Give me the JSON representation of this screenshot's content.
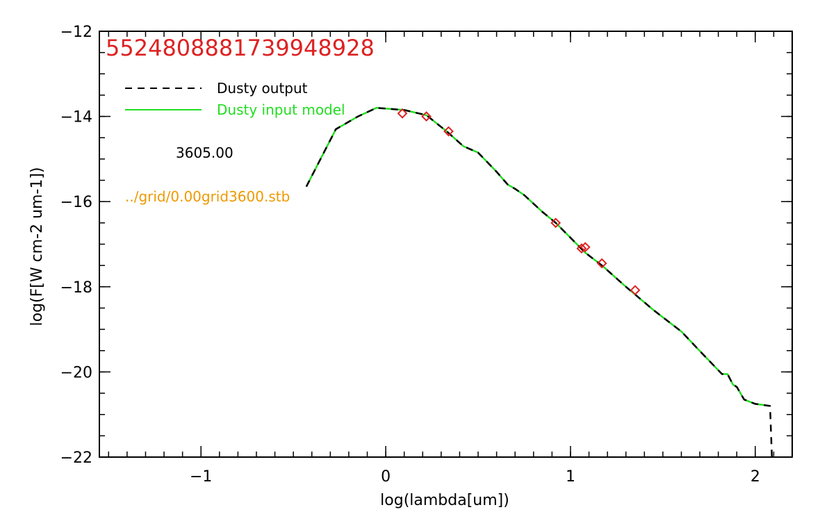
{
  "chart_data": {
    "type": "line",
    "id_label": "5524808881739948928",
    "xlabel": "log(lambda[um])",
    "ylabel": "log(F[W cm-2 um-1])",
    "xlim": [
      -1.55,
      2.2
    ],
    "ylim": [
      -22,
      -12
    ],
    "x_major_ticks": [
      -1,
      0,
      1,
      2
    ],
    "x_tick_labels": [
      "−1",
      "0",
      "1",
      "2"
    ],
    "x_minor_step": 0.1,
    "y_major_ticks": [
      -22,
      -20,
      -18,
      -16,
      -14,
      -12
    ],
    "y_tick_labels": [
      "−22",
      "−20",
      "−18",
      "−16",
      "−14",
      "−12"
    ],
    "y_minor_step": 0.5,
    "grid": false,
    "legend_position": "top-left",
    "legend": [
      {
        "label": "Dusty output",
        "style": "dashed",
        "color": "#000000"
      },
      {
        "label": "Dusty input model",
        "style": "solid",
        "color": "#22dd22"
      }
    ],
    "annotations": {
      "temperature": "3605.00",
      "filename": "../grid/0.00grid3600.stb"
    },
    "series": [
      {
        "name": "Dusty input model",
        "style": "solid",
        "color": "#22dd22",
        "x": [
          -0.43,
          -0.27,
          -0.15,
          -0.05,
          0.1,
          0.22,
          0.33,
          0.42,
          0.5,
          0.6,
          0.66,
          0.7,
          0.75,
          0.85,
          0.92,
          1.0,
          1.08,
          1.17,
          1.3,
          1.45,
          1.6,
          1.72,
          1.82,
          1.85,
          1.88,
          1.9,
          1.94,
          2.0,
          2.08
        ],
        "y": [
          -15.65,
          -14.3,
          -14.0,
          -13.8,
          -13.85,
          -13.97,
          -14.35,
          -14.7,
          -14.85,
          -15.3,
          -15.6,
          -15.7,
          -15.85,
          -16.25,
          -16.5,
          -16.85,
          -17.2,
          -17.5,
          -18.0,
          -18.55,
          -19.05,
          -19.6,
          -20.05,
          -20.05,
          -20.3,
          -20.35,
          -20.65,
          -20.75,
          -20.8
        ]
      },
      {
        "name": "Dusty output",
        "style": "dashed",
        "color": "#000000",
        "x": [
          -0.43,
          -0.27,
          -0.15,
          -0.05,
          0.1,
          0.22,
          0.33,
          0.42,
          0.5,
          0.6,
          0.66,
          0.7,
          0.75,
          0.85,
          0.92,
          1.0,
          1.08,
          1.17,
          1.3,
          1.45,
          1.6,
          1.72,
          1.82,
          1.85,
          1.88,
          1.9,
          1.94,
          2.0,
          2.08,
          2.09
        ],
        "y": [
          -15.65,
          -14.3,
          -14.0,
          -13.8,
          -13.85,
          -13.97,
          -14.35,
          -14.7,
          -14.85,
          -15.3,
          -15.6,
          -15.7,
          -15.85,
          -16.25,
          -16.5,
          -16.85,
          -17.2,
          -17.5,
          -18.0,
          -18.55,
          -19.05,
          -19.6,
          -20.05,
          -20.05,
          -20.3,
          -20.35,
          -20.65,
          -20.75,
          -20.8,
          -22.0
        ]
      }
    ],
    "observed_points": {
      "marker": "diamond",
      "color": "#dd2222",
      "x": [
        0.09,
        0.22,
        0.34,
        0.92,
        1.06,
        1.08,
        1.17,
        1.35
      ],
      "y": [
        -13.93,
        -14.0,
        -14.35,
        -16.5,
        -17.1,
        -17.07,
        -17.45,
        -18.08
      ]
    }
  },
  "colors": {
    "id_label": "#dd2222",
    "filename": "#ee9900",
    "legend_green": "#22dd22",
    "axes": "#000000"
  }
}
